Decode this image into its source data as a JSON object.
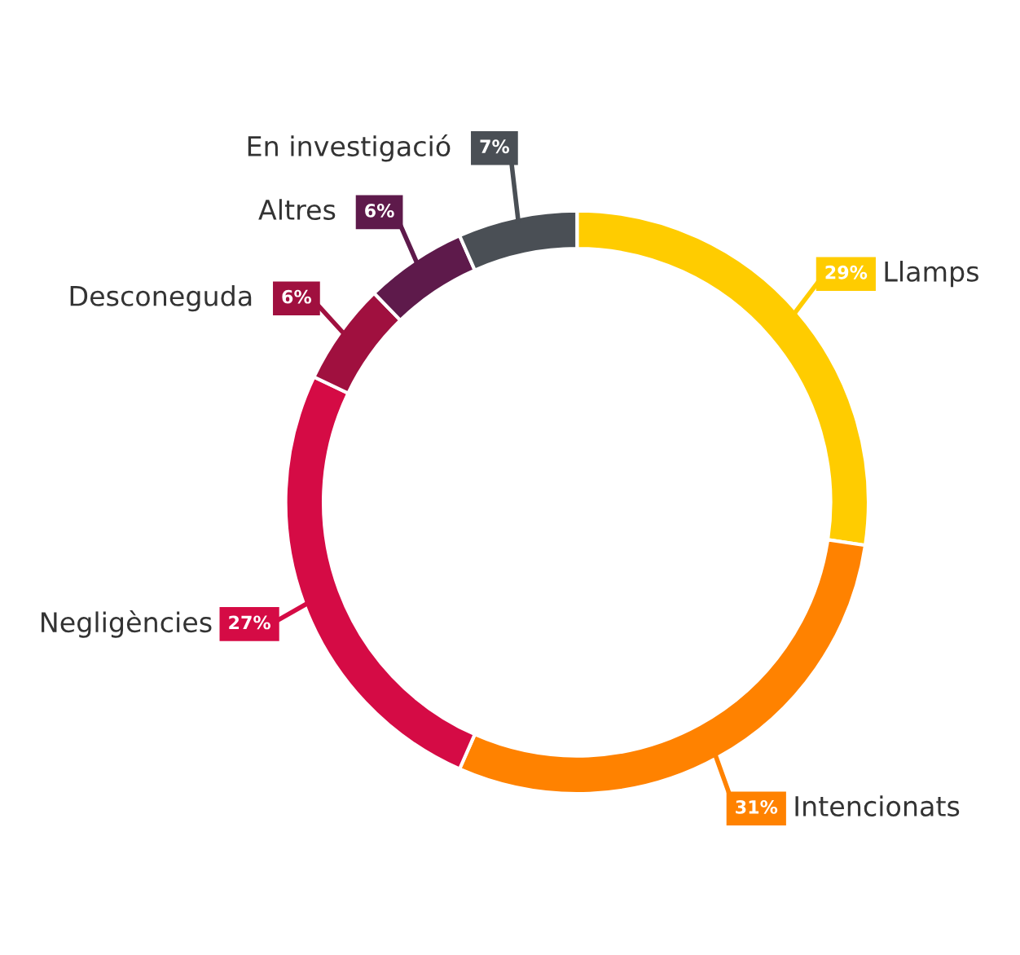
{
  "chart_data": {
    "type": "donut",
    "categories": [
      "Llamps",
      "Intencionats",
      "Negligències",
      "Desconeguda",
      "Altres",
      "En investigació"
    ],
    "values": [
      29,
      31,
      27,
      6,
      6,
      7
    ],
    "colors": [
      "#ffcc00",
      "#ff8200",
      "#d50b45",
      "#a0103f",
      "#5e1a4b",
      "#4a4f55"
    ],
    "value_labels": [
      "29%",
      "31%",
      "27%",
      "6%",
      "6%",
      "7%"
    ],
    "legend": "left"
  }
}
